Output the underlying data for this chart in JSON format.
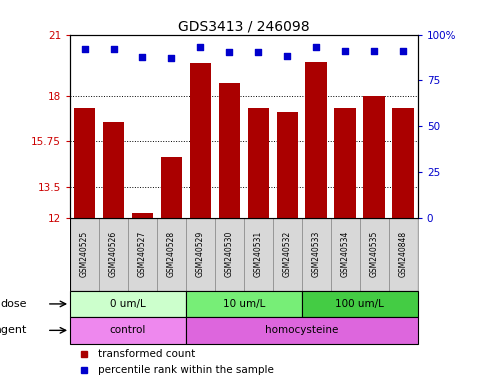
{
  "title": "GDS3413 / 246098",
  "samples": [
    "GSM240525",
    "GSM240526",
    "GSM240527",
    "GSM240528",
    "GSM240529",
    "GSM240530",
    "GSM240531",
    "GSM240532",
    "GSM240533",
    "GSM240534",
    "GSM240535",
    "GSM240848"
  ],
  "bar_values": [
    17.4,
    16.7,
    12.2,
    15.0,
    19.6,
    18.6,
    17.4,
    17.2,
    19.65,
    17.4,
    18.0,
    17.4
  ],
  "dot_values": [
    20.3,
    20.3,
    19.9,
    19.85,
    20.4,
    20.15,
    20.15,
    19.95,
    20.4,
    20.2,
    20.2,
    20.2
  ],
  "bar_color": "#aa0000",
  "dot_color": "#0000cc",
  "ylim_left": [
    12,
    21
  ],
  "yticks_left": [
    12,
    13.5,
    15.75,
    18,
    21
  ],
  "ytick_labels_left": [
    "12",
    "13.5",
    "15.75",
    "18",
    "21"
  ],
  "ylim_right": [
    0,
    100
  ],
  "yticks_right": [
    0,
    25,
    50,
    75,
    100
  ],
  "ytick_labels_right": [
    "0",
    "25",
    "50",
    "75",
    "100%"
  ],
  "dose_groups": [
    {
      "label": "0 um/L",
      "start": 0,
      "end": 4,
      "color": "#ccffcc"
    },
    {
      "label": "10 um/L",
      "start": 4,
      "end": 8,
      "color": "#77ee77"
    },
    {
      "label": "100 um/L",
      "start": 8,
      "end": 12,
      "color": "#44cc44"
    }
  ],
  "agent_groups": [
    {
      "label": "control",
      "start": 0,
      "end": 4,
      "color": "#ee88ee"
    },
    {
      "label": "homocysteine",
      "start": 4,
      "end": 12,
      "color": "#dd66dd"
    }
  ],
  "dose_label": "dose",
  "agent_label": "agent",
  "legend_bar_label": "transformed count",
  "legend_dot_label": "percentile rank within the sample",
  "grid_color": "#000000",
  "axis_left_color": "#cc0000",
  "axis_right_color": "#0000cc",
  "background_color": "#ffffff",
  "sample_bg_color": "#d8d8d8",
  "sample_border_color": "#888888"
}
